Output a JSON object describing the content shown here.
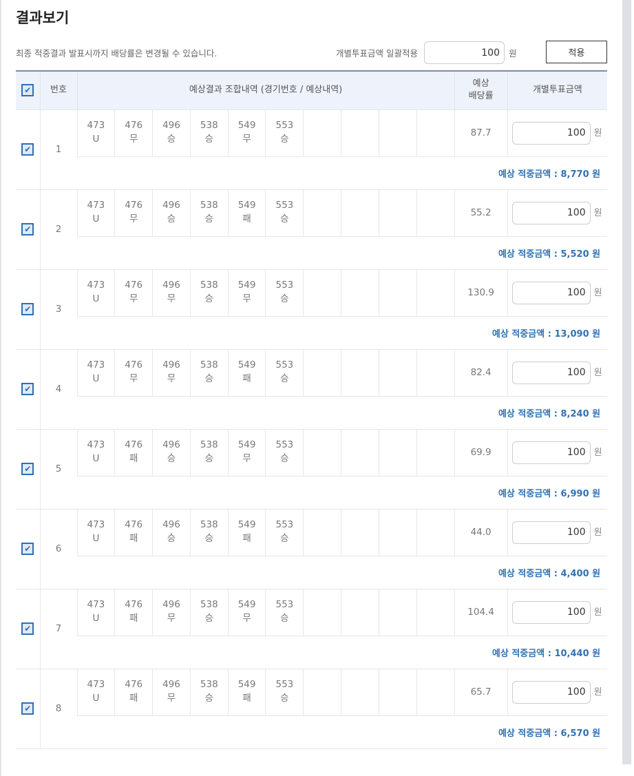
{
  "title": "결과보기",
  "notice": "최종 적중결과 발표시까지 배당률은 변경될 수 있습니다.",
  "bulk": {
    "label": "개별투표금액 일괄적용",
    "value": "100",
    "unit": "원",
    "apply_label": "적용"
  },
  "header": {
    "number": "번호",
    "combo": "예상결과 조합내역 (경기번호 / 예상내역)",
    "odds_line1": "예상",
    "odds_line2": "배당률",
    "amount": "개별투표금액"
  },
  "expected_label": "예상 적중금액 : ",
  "unit": "원",
  "rows": [
    {
      "no": "1",
      "games": [
        [
          "473",
          "U"
        ],
        [
          "476",
          "무"
        ],
        [
          "496",
          "승"
        ],
        [
          "538",
          "승"
        ],
        [
          "549",
          "무"
        ],
        [
          "553",
          "승"
        ]
      ],
      "odds": "87.7",
      "amount": "100",
      "expected": "8,770 원",
      "checked": true
    },
    {
      "no": "2",
      "games": [
        [
          "473",
          "U"
        ],
        [
          "476",
          "무"
        ],
        [
          "496",
          "승"
        ],
        [
          "538",
          "승"
        ],
        [
          "549",
          "패"
        ],
        [
          "553",
          "승"
        ]
      ],
      "odds": "55.2",
      "amount": "100",
      "expected": "5,520 원",
      "checked": true
    },
    {
      "no": "3",
      "games": [
        [
          "473",
          "U"
        ],
        [
          "476",
          "무"
        ],
        [
          "496",
          "무"
        ],
        [
          "538",
          "승"
        ],
        [
          "549",
          "무"
        ],
        [
          "553",
          "승"
        ]
      ],
      "odds": "130.9",
      "amount": "100",
      "expected": "13,090 원",
      "checked": true
    },
    {
      "no": "4",
      "games": [
        [
          "473",
          "U"
        ],
        [
          "476",
          "무"
        ],
        [
          "496",
          "무"
        ],
        [
          "538",
          "승"
        ],
        [
          "549",
          "패"
        ],
        [
          "553",
          "승"
        ]
      ],
      "odds": "82.4",
      "amount": "100",
      "expected": "8,240 원",
      "checked": true
    },
    {
      "no": "5",
      "games": [
        [
          "473",
          "U"
        ],
        [
          "476",
          "패"
        ],
        [
          "496",
          "승"
        ],
        [
          "538",
          "승"
        ],
        [
          "549",
          "무"
        ],
        [
          "553",
          "승"
        ]
      ],
      "odds": "69.9",
      "amount": "100",
      "expected": "6,990 원",
      "checked": true
    },
    {
      "no": "6",
      "games": [
        [
          "473",
          "U"
        ],
        [
          "476",
          "패"
        ],
        [
          "496",
          "승"
        ],
        [
          "538",
          "승"
        ],
        [
          "549",
          "패"
        ],
        [
          "553",
          "승"
        ]
      ],
      "odds": "44.0",
      "amount": "100",
      "expected": "4,400 원",
      "checked": true
    },
    {
      "no": "7",
      "games": [
        [
          "473",
          "U"
        ],
        [
          "476",
          "패"
        ],
        [
          "496",
          "무"
        ],
        [
          "538",
          "승"
        ],
        [
          "549",
          "무"
        ],
        [
          "553",
          "승"
        ]
      ],
      "odds": "104.4",
      "amount": "100",
      "expected": "10,440 원",
      "checked": true
    },
    {
      "no": "8",
      "games": [
        [
          "473",
          "U"
        ],
        [
          "476",
          "패"
        ],
        [
          "496",
          "무"
        ],
        [
          "538",
          "승"
        ],
        [
          "549",
          "패"
        ],
        [
          "553",
          "승"
        ]
      ],
      "odds": "65.7",
      "amount": "100",
      "expected": "6,570 원",
      "checked": true
    }
  ],
  "colors": {
    "accent": "#2f72b4",
    "header_bg": "#eef2fb"
  }
}
